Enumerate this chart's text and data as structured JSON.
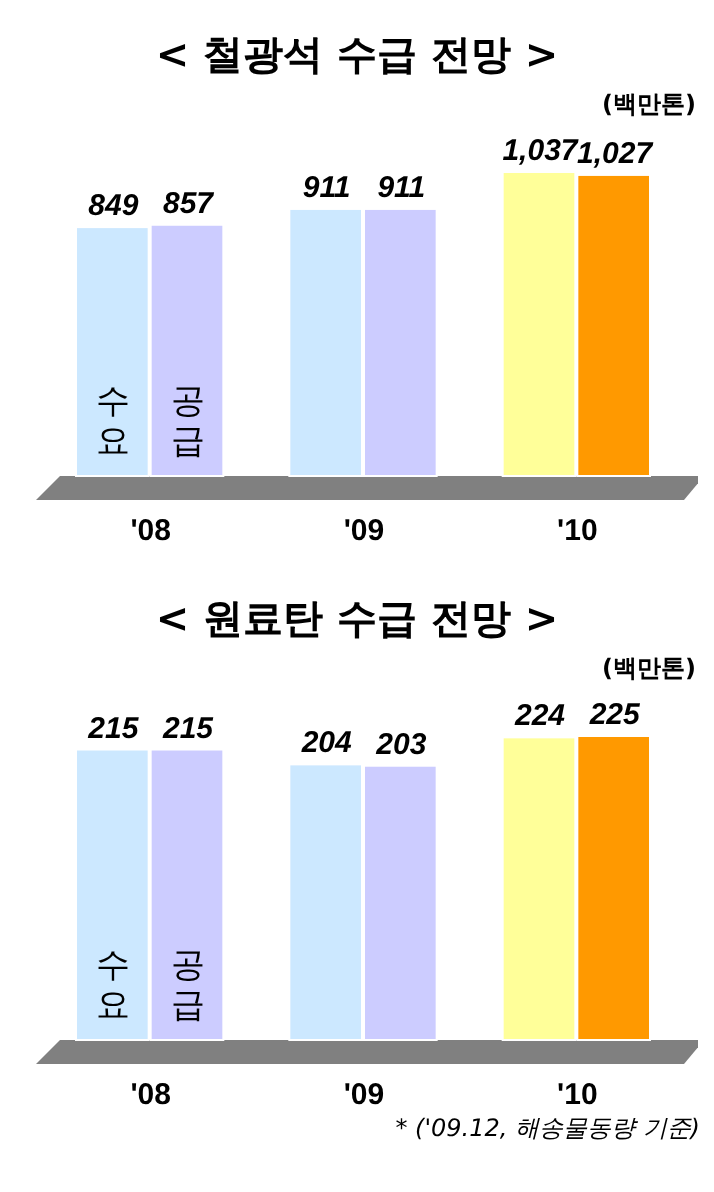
{
  "chart_data": [
    {
      "type": "bar",
      "title": "< 철광석 수급 전망 >",
      "ylabel": "(백만톤)",
      "categories": [
        "'08",
        "'09",
        "'10"
      ],
      "series": [
        {
          "name": "수요",
          "colors": [
            "#cce8ff",
            "#cce8ff",
            "#ffff99"
          ],
          "values": [
            849,
            911,
            1037
          ],
          "value_labels": [
            "849",
            "911",
            "1,037"
          ]
        },
        {
          "name": "공급",
          "colors": [
            "#ccccff",
            "#ccccff",
            "#ff9900"
          ],
          "values": [
            857,
            911,
            1027
          ],
          "value_labels": [
            "857",
            "911",
            "1,027"
          ]
        }
      ]
    },
    {
      "type": "bar",
      "title": "< 원료탄 수급 전망 >",
      "ylabel": "(백만톤)",
      "categories": [
        "'08",
        "'09",
        "'10"
      ],
      "series": [
        {
          "name": "수요",
          "colors": [
            "#cce8ff",
            "#cce8ff",
            "#ffff99"
          ],
          "values": [
            215,
            204,
            224
          ],
          "value_labels": [
            "215",
            "204",
            "224"
          ]
        },
        {
          "name": "공급",
          "colors": [
            "#ccccff",
            "#ccccff",
            "#ff9900"
          ],
          "values": [
            215,
            203,
            225
          ],
          "value_labels": [
            "215",
            "203",
            "225"
          ]
        }
      ],
      "annotations": [
        "* ('09.12, 해송물동량 기준)"
      ]
    }
  ]
}
